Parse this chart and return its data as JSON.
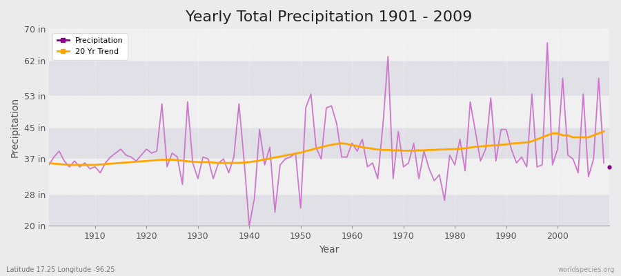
{
  "title": "Yearly Total Precipitation 1901 - 2009",
  "xlabel": "Year",
  "ylabel": "Precipitation",
  "lat_lon_label": "Latitude 17.25 Longitude -96.25",
  "watermark": "worldspecies.org",
  "years": [
    1901,
    1902,
    1903,
    1904,
    1905,
    1906,
    1907,
    1908,
    1909,
    1910,
    1911,
    1912,
    1913,
    1914,
    1915,
    1916,
    1917,
    1918,
    1919,
    1920,
    1921,
    1922,
    1923,
    1924,
    1925,
    1926,
    1927,
    1928,
    1929,
    1930,
    1931,
    1932,
    1933,
    1934,
    1935,
    1936,
    1937,
    1938,
    1939,
    1940,
    1941,
    1942,
    1943,
    1944,
    1945,
    1946,
    1947,
    1948,
    1949,
    1950,
    1951,
    1952,
    1953,
    1954,
    1955,
    1956,
    1957,
    1958,
    1959,
    1960,
    1961,
    1962,
    1963,
    1964,
    1965,
    1966,
    1967,
    1968,
    1969,
    1970,
    1971,
    1972,
    1973,
    1974,
    1975,
    1976,
    1977,
    1978,
    1979,
    1980,
    1981,
    1982,
    1983,
    1984,
    1985,
    1986,
    1987,
    1988,
    1989,
    1990,
    1991,
    1992,
    1993,
    1994,
    1995,
    1996,
    1997,
    1998,
    1999,
    2000,
    2001,
    2002,
    2003,
    2004,
    2005,
    2006,
    2007,
    2008,
    2009
  ],
  "precip": [
    35.5,
    37.5,
    39.0,
    36.5,
    35.0,
    36.5,
    35.0,
    36.0,
    34.5,
    35.0,
    33.5,
    36.0,
    37.5,
    38.5,
    39.5,
    38.0,
    37.5,
    36.5,
    38.0,
    39.5,
    38.5,
    39.0,
    51.0,
    35.0,
    38.5,
    37.5,
    30.5,
    51.5,
    36.0,
    32.0,
    37.5,
    37.0,
    32.0,
    36.0,
    37.0,
    33.5,
    37.5,
    51.0,
    36.5,
    20.0,
    27.0,
    44.5,
    35.5,
    40.0,
    23.5,
    35.5,
    37.0,
    37.5,
    38.5,
    24.5,
    50.0,
    53.5,
    40.0,
    37.0,
    50.0,
    50.5,
    46.0,
    37.5,
    37.5,
    41.0,
    39.0,
    42.0,
    35.0,
    36.0,
    32.0,
    45.5,
    63.0,
    32.0,
    44.0,
    35.0,
    36.0,
    41.0,
    32.0,
    39.0,
    34.5,
    31.5,
    33.0,
    26.5,
    38.0,
    35.5,
    42.0,
    34.0,
    51.5,
    44.0,
    36.5,
    39.5,
    52.5,
    36.5,
    44.5,
    44.5,
    39.5,
    36.0,
    37.5,
    35.0,
    53.5,
    35.0,
    35.5,
    66.5,
    35.5,
    39.5,
    57.5,
    38.0,
    37.0,
    33.5,
    53.5,
    32.5,
    37.0,
    57.5,
    36.0
  ],
  "trend": [
    36.0,
    35.8,
    35.7,
    35.6,
    35.5,
    35.5,
    35.5,
    35.5,
    35.5,
    35.5,
    35.6,
    35.7,
    35.8,
    35.9,
    36.0,
    36.1,
    36.2,
    36.3,
    36.4,
    36.5,
    36.6,
    36.7,
    36.8,
    36.8,
    36.8,
    36.7,
    36.6,
    36.4,
    36.3,
    36.2,
    36.2,
    36.2,
    36.1,
    36.0,
    36.0,
    36.0,
    36.0,
    36.0,
    36.1,
    36.2,
    36.4,
    36.6,
    36.9,
    37.1,
    37.4,
    37.6,
    37.9,
    38.1,
    38.4,
    38.6,
    39.0,
    39.3,
    39.7,
    40.0,
    40.3,
    40.6,
    40.8,
    41.0,
    40.8,
    40.5,
    40.3,
    40.0,
    39.8,
    39.6,
    39.4,
    39.3,
    39.3,
    39.2,
    39.2,
    39.1,
    39.1,
    39.1,
    39.2,
    39.2,
    39.3,
    39.3,
    39.4,
    39.4,
    39.5,
    39.5,
    39.6,
    39.7,
    39.9,
    40.1,
    40.2,
    40.3,
    40.4,
    40.5,
    40.6,
    40.7,
    40.9,
    41.0,
    41.1,
    41.2,
    41.5,
    42.0,
    42.5,
    43.0,
    43.5,
    43.5,
    43.0,
    43.0,
    42.5,
    42.5,
    42.5,
    42.5,
    43.0,
    43.5,
    44.0
  ],
  "precip_color": "#8B008B",
  "precip_color_light": "#CC77CC",
  "trend_color": "#FFA500",
  "bg_color": "#EBEBEB",
  "band_color_light": "#F0F0F0",
  "band_color_dark": "#E0E0E6",
  "grid_color": "#FFFFFF",
  "ylim": [
    20,
    70
  ],
  "yticks": [
    20,
    28,
    37,
    45,
    53,
    62,
    70
  ],
  "ytick_labels": [
    "20 in",
    "28 in",
    "37 in",
    "45 in",
    "53 in",
    "62 in",
    "70 in"
  ],
  "xlim": [
    1901,
    2010
  ],
  "xticks": [
    1910,
    1920,
    1930,
    1940,
    1950,
    1960,
    1970,
    1980,
    1990,
    2000
  ],
  "title_fontsize": 16,
  "axis_fontsize": 10,
  "tick_fontsize": 9
}
